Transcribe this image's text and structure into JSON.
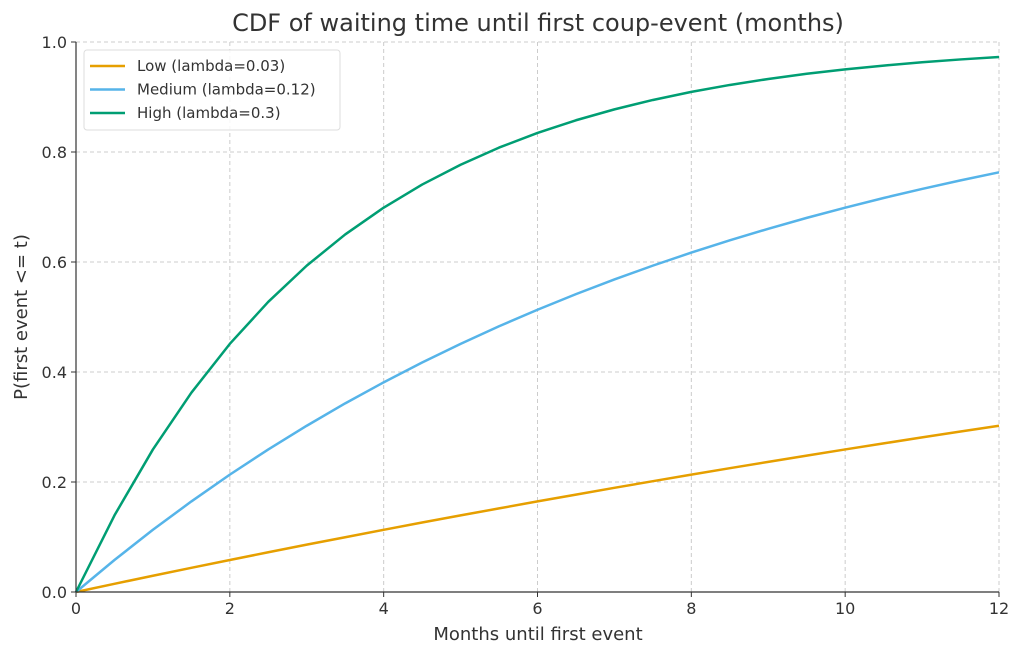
{
  "chart_data": {
    "type": "line",
    "title": "CDF of waiting time until first coup-event (months)",
    "xlabel": "Months until first event",
    "ylabel": "P(first event <= t)",
    "xlim": [
      0,
      12
    ],
    "ylim": [
      0,
      1.0
    ],
    "xticks": [
      0,
      2,
      4,
      6,
      8,
      10,
      12
    ],
    "xtick_labels": [
      "0",
      "2",
      "4",
      "6",
      "8",
      "10",
      "12"
    ],
    "yticks": [
      0,
      0.2,
      0.4,
      0.6,
      0.8,
      1.0
    ],
    "ytick_labels": [
      "0.0",
      "0.2",
      "0.4",
      "0.6",
      "0.8",
      "1.0"
    ],
    "grid": true,
    "legend_position": "top-left",
    "x": [
      0,
      0.5,
      1,
      1.5,
      2,
      2.5,
      3,
      3.5,
      4,
      4.5,
      5,
      5.5,
      6,
      6.5,
      7,
      7.5,
      8,
      8.5,
      9,
      9.5,
      10,
      10.5,
      11,
      11.5,
      12
    ],
    "series": [
      {
        "name": "Low (lambda=0.03)",
        "color": "#E69F00",
        "values": [
          0,
          0.0149,
          0.0296,
          0.044,
          0.0582,
          0.0723,
          0.0861,
          0.0996,
          0.1131,
          0.1263,
          0.1393,
          0.152,
          0.1647,
          0.1771,
          0.1894,
          0.2015,
          0.2134,
          0.2251,
          0.2366,
          0.248,
          0.2592,
          0.2702,
          0.2811,
          0.2918,
          0.3023
        ]
      },
      {
        "name": "Medium (lambda=0.12)",
        "color": "#56B4E9",
        "values": [
          0,
          0.0582,
          0.1131,
          0.1647,
          0.2134,
          0.2592,
          0.3023,
          0.343,
          0.3812,
          0.4173,
          0.4512,
          0.4832,
          0.5132,
          0.5416,
          0.5683,
          0.5934,
          0.6171,
          0.6394,
          0.6604,
          0.6802,
          0.6988,
          0.7164,
          0.7329,
          0.7484,
          0.7631
        ]
      },
      {
        "name": "High (lambda=0.3)",
        "color": "#009E73",
        "values": [
          0,
          0.1393,
          0.2592,
          0.3624,
          0.4512,
          0.5276,
          0.5934,
          0.6501,
          0.6988,
          0.7408,
          0.7769,
          0.808,
          0.8347,
          0.8577,
          0.8775,
          0.8946,
          0.9093,
          0.9219,
          0.9328,
          0.9422,
          0.9502,
          0.9571,
          0.9631,
          0.9683,
          0.9727
        ]
      }
    ]
  }
}
